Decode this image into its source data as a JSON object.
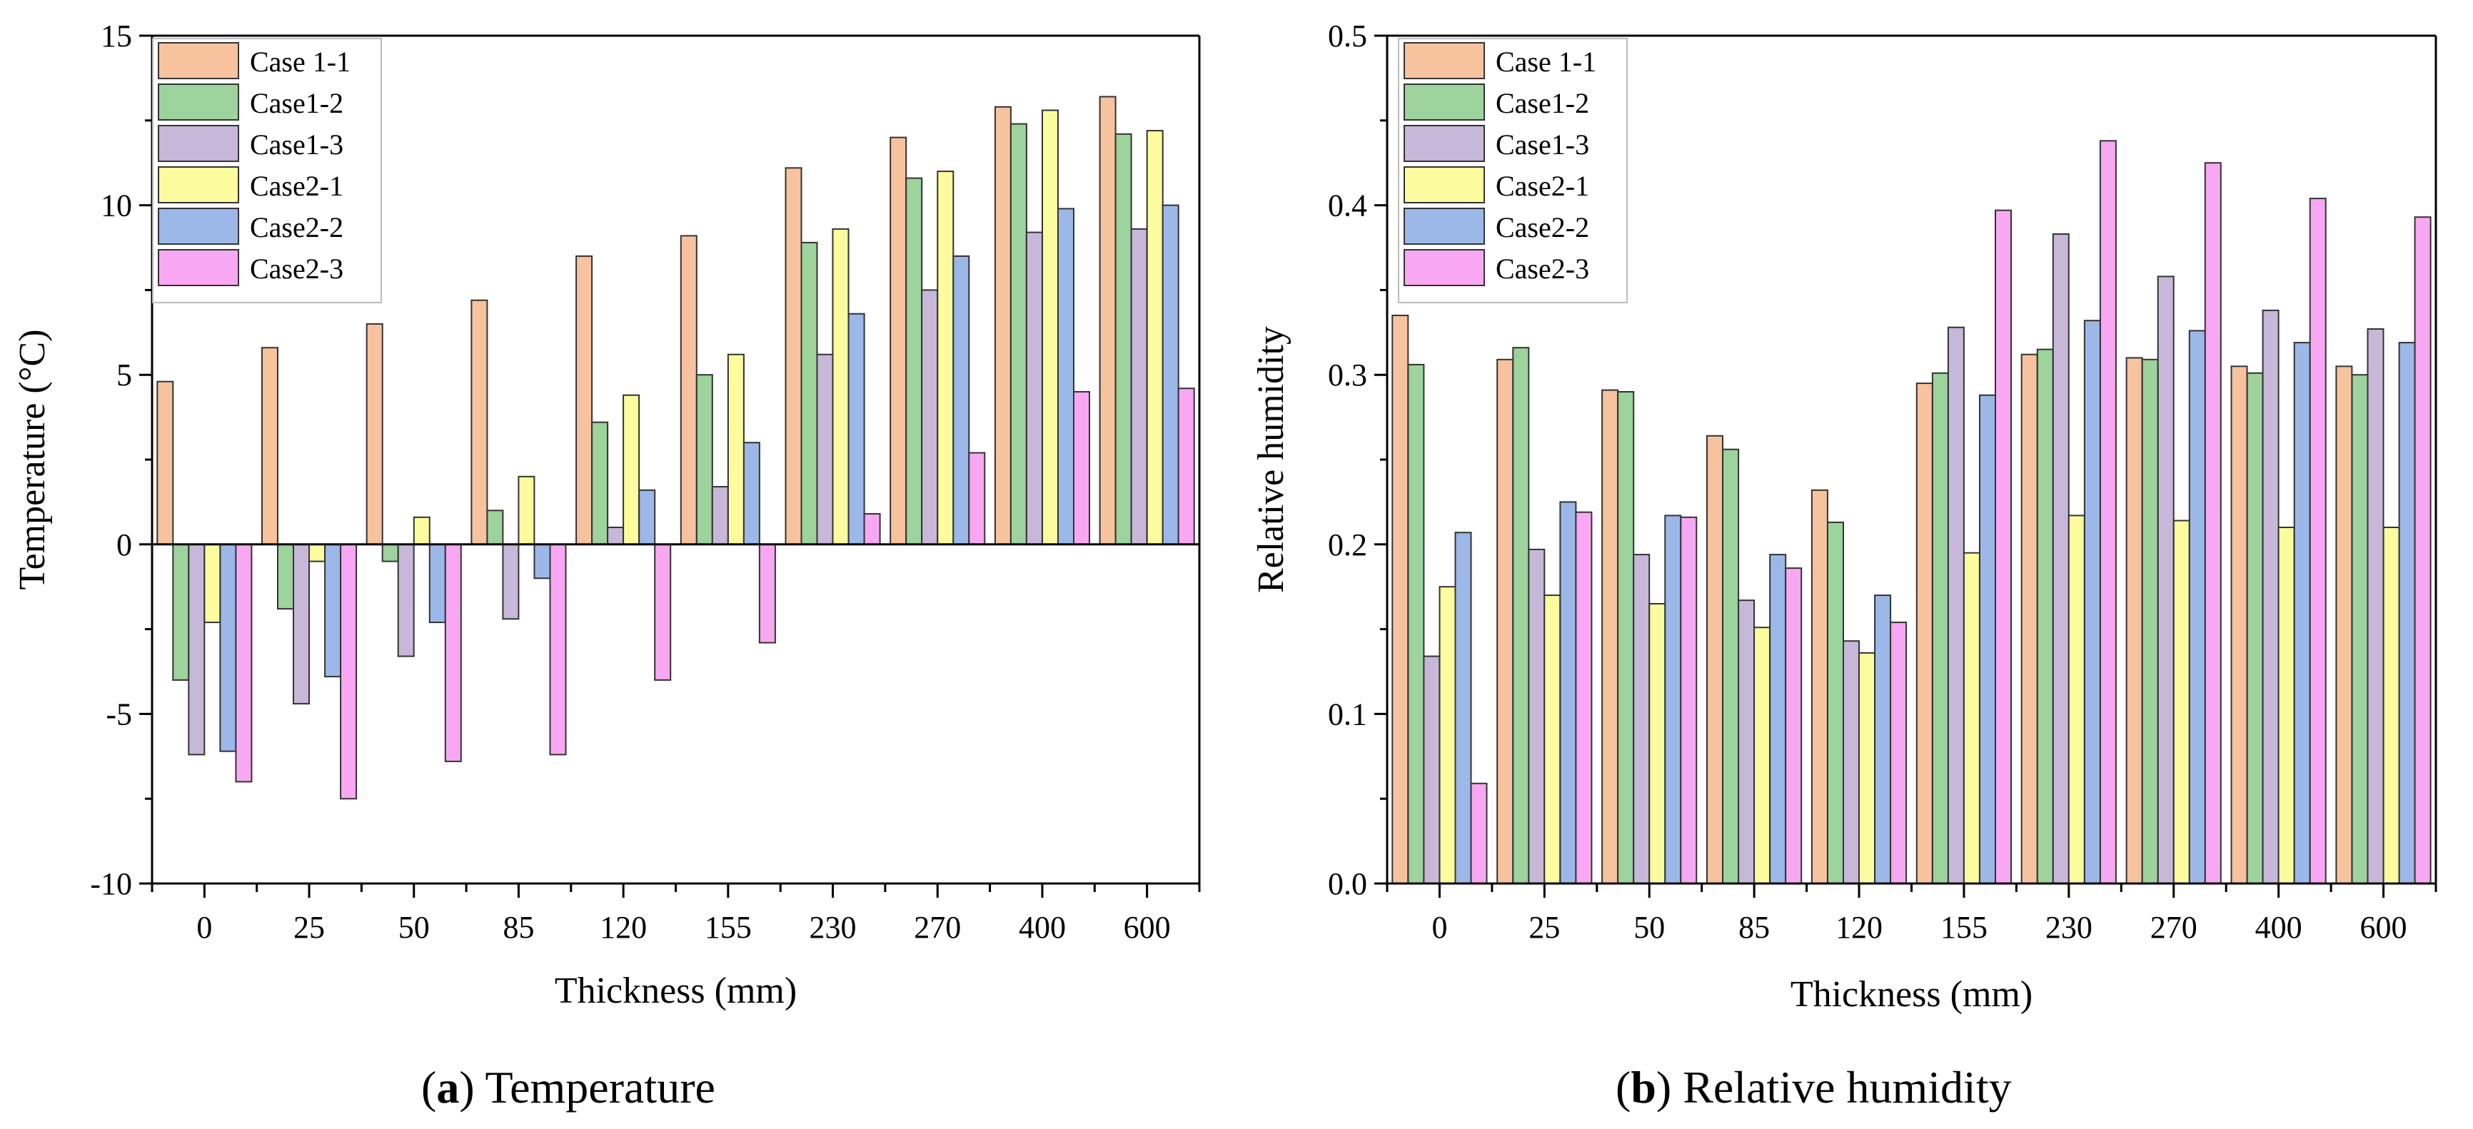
{
  "chart_data": [
    {
      "type": "bar",
      "title": "",
      "caption": {
        "letter": "a",
        "open": "(",
        "close": ")",
        "text": " Temperature"
      },
      "xlabel": "Thickness (mm)",
      "ylabel": "Temperature (°C)",
      "ylim": [
        -10,
        15
      ],
      "yticks": [
        -10,
        -5,
        0,
        5,
        10,
        15
      ],
      "legend_position": "top-left",
      "categories": [
        "0",
        "25",
        "50",
        "85",
        "120",
        "155",
        "230",
        "270",
        "400",
        "600"
      ],
      "series": [
        {
          "name": "Case 1-1",
          "color": "#F7C39E",
          "values": [
            4.8,
            5.8,
            6.5,
            7.2,
            8.5,
            9.1,
            11.1,
            12.0,
            12.9,
            13.2
          ]
        },
        {
          "name": "Case1-2",
          "color": "#9DD39C",
          "values": [
            -4.0,
            -1.9,
            -0.5,
            1.0,
            3.6,
            5.0,
            8.9,
            10.8,
            12.4,
            12.1
          ]
        },
        {
          "name": "Case1-3",
          "color": "#C7B8D9",
          "values": [
            -6.2,
            -4.7,
            -3.3,
            -2.2,
            0.5,
            1.7,
            5.6,
            7.5,
            9.2,
            9.3
          ]
        },
        {
          "name": "Case2-1",
          "color": "#FCFC9E",
          "values": [
            -2.3,
            -0.5,
            0.8,
            2.0,
            4.4,
            5.6,
            9.3,
            11.0,
            12.8,
            12.2
          ]
        },
        {
          "name": "Case2-2",
          "color": "#9CB8E8",
          "values": [
            -6.1,
            -3.9,
            -2.3,
            -1.0,
            1.6,
            3.0,
            6.8,
            8.5,
            9.9,
            10.0
          ]
        },
        {
          "name": "Case2-3",
          "color": "#F8A8F2",
          "values": [
            -7.0,
            -7.5,
            -6.4,
            -6.2,
            -4.0,
            -2.9,
            0.9,
            2.7,
            4.5,
            4.6
          ]
        }
      ]
    },
    {
      "type": "bar",
      "title": "",
      "caption": {
        "letter": "b",
        "open": "(",
        "close": ")",
        "text": " Relative humidity"
      },
      "xlabel": "Thickness (mm)",
      "ylabel": "Relative humidity",
      "ylim": [
        0.0,
        0.5
      ],
      "yticks": [
        0.0,
        0.1,
        0.2,
        0.3,
        0.4,
        0.5
      ],
      "ytick_labels": [
        "0.0",
        "0.1",
        "0.2",
        "0.3",
        "0.4",
        "0.5"
      ],
      "legend_position": "top-left",
      "categories": [
        "0",
        "25",
        "50",
        "85",
        "120",
        "155",
        "230",
        "270",
        "400",
        "600"
      ],
      "series": [
        {
          "name": "Case 1-1",
          "color": "#F7C39E",
          "values": [
            0.335,
            0.309,
            0.291,
            0.264,
            0.232,
            0.295,
            0.312,
            0.31,
            0.305,
            0.305
          ]
        },
        {
          "name": "Case1-2",
          "color": "#9DD39C",
          "values": [
            0.306,
            0.316,
            0.29,
            0.256,
            0.213,
            0.301,
            0.315,
            0.309,
            0.301,
            0.3
          ]
        },
        {
          "name": "Case1-3",
          "color": "#C7B8D9",
          "values": [
            0.134,
            0.197,
            0.194,
            0.167,
            0.143,
            0.328,
            0.383,
            0.358,
            0.338,
            0.327
          ]
        },
        {
          "name": "Case2-1",
          "color": "#FCFC9E",
          "values": [
            0.175,
            0.17,
            0.165,
            0.151,
            0.136,
            0.195,
            0.217,
            0.214,
            0.21,
            0.21
          ]
        },
        {
          "name": "Case2-2",
          "color": "#9CB8E8",
          "values": [
            0.207,
            0.225,
            0.217,
            0.194,
            0.17,
            0.288,
            0.332,
            0.326,
            0.319,
            0.319
          ]
        },
        {
          "name": "Case2-3",
          "color": "#F8A8F2",
          "values": [
            0.059,
            0.219,
            0.216,
            0.186,
            0.154,
            0.397,
            0.438,
            0.425,
            0.404,
            0.393
          ]
        }
      ]
    }
  ]
}
